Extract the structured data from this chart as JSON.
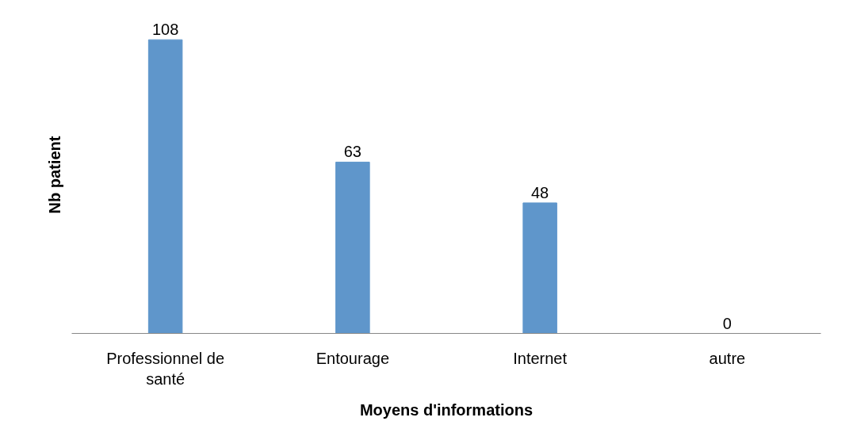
{
  "chart_data": {
    "type": "bar",
    "categories": [
      "Professionnel de santé",
      "Entourage",
      "Internet",
      "autre"
    ],
    "values": [
      108,
      63,
      48,
      0
    ],
    "color": "#5f96cb",
    "data_labels": true,
    "xlabel": "Moyens d'informations",
    "ylabel": "Nb patient",
    "grid": false
  }
}
